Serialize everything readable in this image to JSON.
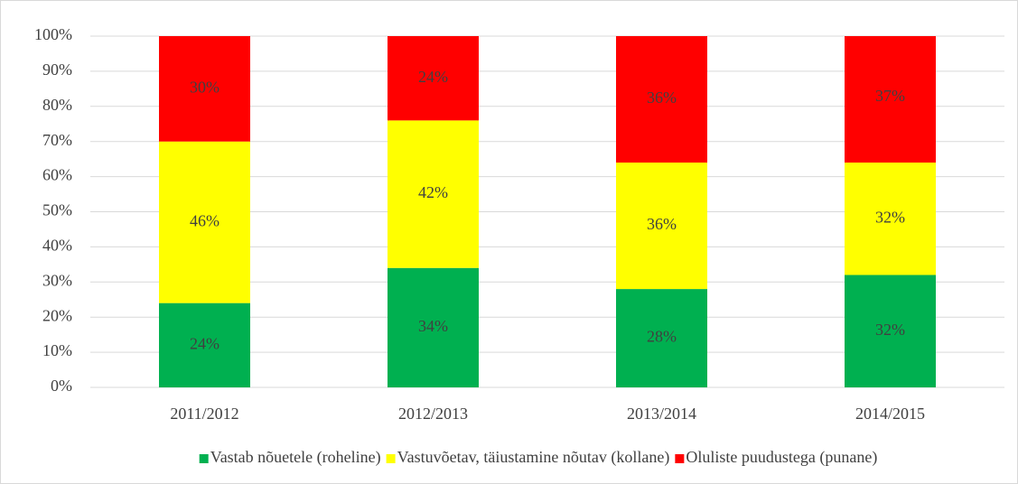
{
  "chart_data": {
    "type": "stacked_bar",
    "categories": [
      "2011/2012",
      "2012/2013",
      "2013/2014",
      "2014/2015"
    ],
    "series": [
      {
        "name": "Vastab nõuetele (roheline)",
        "color": "#00b050",
        "values": [
          24,
          34,
          28,
          32
        ],
        "value_labels": [
          "24%",
          "34%",
          "28%",
          "32%"
        ]
      },
      {
        "name": "Vastuvõetav, täiustamine nõutav (kollane)",
        "color": "#ffff00",
        "values": [
          46,
          42,
          36,
          32
        ],
        "value_labels": [
          "46%",
          "42%",
          "36%",
          "32%"
        ]
      },
      {
        "name": "Oluliste puudustega (punane)",
        "color": "#ff0000",
        "values": [
          30,
          24,
          36,
          37
        ],
        "value_labels": [
          "30%",
          "24%",
          "36%",
          "37%"
        ]
      }
    ],
    "ylim": [
      0,
      100
    ],
    "yticks": [
      {
        "value": 0,
        "label": "0%"
      },
      {
        "value": 10,
        "label": "10%"
      },
      {
        "value": 20,
        "label": "20%"
      },
      {
        "value": 30,
        "label": "30%"
      },
      {
        "value": 40,
        "label": "40%"
      },
      {
        "value": 50,
        "label": "50%"
      },
      {
        "value": 60,
        "label": "60%"
      },
      {
        "value": 70,
        "label": "70%"
      },
      {
        "value": 80,
        "label": "80%"
      },
      {
        "value": 90,
        "label": "90%"
      },
      {
        "value": 100,
        "label": "100%"
      }
    ],
    "grid": true,
    "legend": "bottom"
  }
}
